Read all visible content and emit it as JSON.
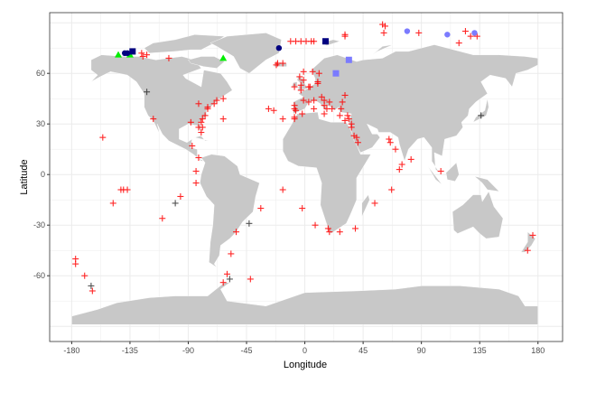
{
  "chart_data": {
    "type": "scatter",
    "title": "",
    "xlabel": "Longitude",
    "ylabel": "Latitude",
    "xlim": [
      -197,
      199
    ],
    "ylim": [
      -99,
      96
    ],
    "x_ticks": [
      "-180",
      "-135",
      "-90",
      "-45",
      "0",
      "45",
      "90",
      "135",
      "180"
    ],
    "x_tick_values": [
      -180,
      -135,
      -90,
      -45,
      0,
      45,
      90,
      135,
      180
    ],
    "y_ticks": [
      "-60",
      "-30",
      "0",
      "30",
      "60"
    ],
    "y_tick_values": [
      -60,
      -30,
      0,
      30,
      60
    ],
    "grid": true,
    "legend": "none",
    "basemap": "world countries",
    "colors": {
      "land": "#c8c8c8",
      "border": "#ffffff",
      "cross": "#ff0000",
      "cross_dark": "#333333",
      "triangle": "#00ee00",
      "navy": "#000080",
      "light": "#7b7bff",
      "grid": "#ebebeb"
    },
    "series": [
      {
        "name": "red-cross",
        "shape": "cross",
        "color": "#ff0000",
        "points": [
          [
            -126,
            72
          ],
          [
            -125,
            70
          ],
          [
            -122,
            71
          ],
          [
            -105,
            69
          ],
          [
            -117,
            33
          ],
          [
            -156,
            22
          ],
          [
            -82,
            42
          ],
          [
            -75,
            39
          ],
          [
            -75,
            40
          ],
          [
            -70,
            42
          ],
          [
            -68,
            44
          ],
          [
            -63,
            45
          ],
          [
            -63,
            33
          ],
          [
            -88,
            31
          ],
          [
            -77,
            35
          ],
          [
            -79,
            33
          ],
          [
            -80,
            31
          ],
          [
            -82,
            28
          ],
          [
            -79,
            28
          ],
          [
            -80,
            25
          ],
          [
            -87,
            17
          ],
          [
            -82,
            10
          ],
          [
            -84,
            2
          ],
          [
            -28,
            39
          ],
          [
            -24,
            38
          ],
          [
            -17,
            33
          ],
          [
            -11,
            79
          ],
          [
            -7,
            79
          ],
          [
            -3,
            79
          ],
          [
            1,
            79
          ],
          [
            5,
            79
          ],
          [
            7,
            79
          ],
          [
            -21,
            66
          ],
          [
            -17,
            66
          ],
          [
            -22,
            65
          ],
          [
            31,
            83
          ],
          [
            31,
            82
          ],
          [
            60,
            89
          ],
          [
            62,
            88
          ],
          [
            61,
            84
          ],
          [
            88,
            84
          ],
          [
            124,
            85
          ],
          [
            128,
            82
          ],
          [
            133,
            82
          ],
          [
            119,
            78
          ],
          [
            -4,
            58
          ],
          [
            -1,
            61
          ],
          [
            6,
            61
          ],
          [
            11,
            60
          ],
          [
            -1,
            56
          ],
          [
            -3,
            53
          ],
          [
            -3,
            50
          ],
          [
            3,
            52
          ],
          [
            4,
            52
          ],
          [
            10,
            54
          ],
          [
            10,
            55
          ],
          [
            -8,
            52
          ],
          [
            31,
            47
          ],
          [
            -1,
            44
          ],
          [
            3,
            43
          ],
          [
            7,
            44
          ],
          [
            13,
            46
          ],
          [
            15,
            44
          ],
          [
            19,
            43
          ],
          [
            29,
            43
          ],
          [
            -8,
            41
          ],
          [
            -8,
            39
          ],
          [
            -7,
            38
          ],
          [
            -2,
            36
          ],
          [
            7,
            39
          ],
          [
            15,
            41
          ],
          [
            17,
            39
          ],
          [
            21,
            39
          ],
          [
            28,
            39
          ],
          [
            -8,
            34
          ],
          [
            -8,
            33
          ],
          [
            15,
            36
          ],
          [
            27,
            35
          ],
          [
            33,
            35
          ],
          [
            34,
            33
          ],
          [
            31,
            32
          ],
          [
            36,
            30
          ],
          [
            36,
            28
          ],
          [
            38,
            23
          ],
          [
            40,
            22
          ],
          [
            41,
            19
          ],
          [
            65,
            21
          ],
          [
            66,
            19
          ],
          [
            70,
            15
          ],
          [
            75,
            6
          ],
          [
            82,
            9
          ],
          [
            73,
            3
          ],
          [
            105,
            2
          ],
          [
            -2,
            -20
          ],
          [
            8,
            -30
          ],
          [
            18,
            -32
          ],
          [
            19,
            -34
          ],
          [
            27,
            -34
          ],
          [
            39,
            -32
          ],
          [
            54,
            -17
          ],
          [
            67,
            -9
          ],
          [
            176,
            -36
          ],
          [
            172,
            -45
          ],
          [
            -142,
            -9
          ],
          [
            -140,
            -9
          ],
          [
            -137,
            -9
          ],
          [
            -148,
            -17
          ],
          [
            -110,
            -26
          ],
          [
            -96,
            -13
          ],
          [
            -84,
            -5
          ],
          [
            -17,
            -9
          ],
          [
            -34,
            -20
          ],
          [
            -53,
            -34
          ],
          [
            -57,
            -47
          ],
          [
            -60,
            -59
          ],
          [
            -63,
            -64
          ],
          [
            -42,
            -62
          ],
          [
            -177,
            -50
          ],
          [
            -177,
            -53
          ],
          [
            -170,
            -60
          ],
          [
            -164,
            -69
          ]
        ]
      },
      {
        "name": "dark-cross",
        "shape": "cross",
        "color": "#333333",
        "points": [
          [
            -122,
            49
          ],
          [
            136,
            35
          ],
          [
            -100,
            -17
          ],
          [
            -43,
            -29
          ],
          [
            -165,
            -66
          ],
          [
            -58,
            -62
          ]
        ]
      },
      {
        "name": "green-triangle",
        "shape": "triangle",
        "color": "#00ee00",
        "points": [
          [
            -144,
            71
          ],
          [
            -135,
            71
          ],
          [
            -63,
            69
          ]
        ]
      },
      {
        "name": "navy-circle",
        "shape": "circle",
        "color": "#000080",
        "points": [
          [
            -139,
            72
          ],
          [
            -137,
            72
          ],
          [
            -20,
            75
          ]
        ]
      },
      {
        "name": "navy-square",
        "shape": "square",
        "color": "#000080",
        "points": [
          [
            -133,
            73
          ],
          [
            16,
            79
          ]
        ]
      },
      {
        "name": "light-circle",
        "shape": "circle",
        "color": "#7b7bff",
        "points": [
          [
            79,
            85
          ],
          [
            110,
            83
          ],
          [
            131,
            84
          ]
        ]
      },
      {
        "name": "light-square",
        "shape": "square",
        "color": "#7b7bff",
        "points": [
          [
            34,
            68
          ],
          [
            24,
            60
          ]
        ]
      }
    ]
  }
}
